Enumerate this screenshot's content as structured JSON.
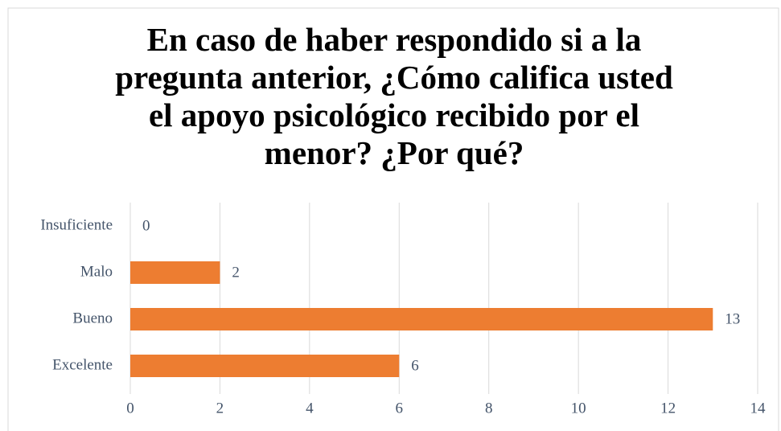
{
  "chart_data": {
    "type": "bar",
    "orientation": "horizontal",
    "title": "En caso de haber respondido si a la pregunta anterior, ¿Cómo califica usted el apoyo psicológico recibido por el menor? ¿Por qué?",
    "categories": [
      "Insuficiente",
      "Malo",
      "Bueno",
      "Excelente"
    ],
    "values": [
      0,
      2,
      13,
      6
    ],
    "color": "#ed7d31",
    "xlim": [
      0,
      14
    ],
    "xticks": [
      0,
      2,
      4,
      6,
      8,
      10,
      12,
      14
    ],
    "grid": true
  }
}
